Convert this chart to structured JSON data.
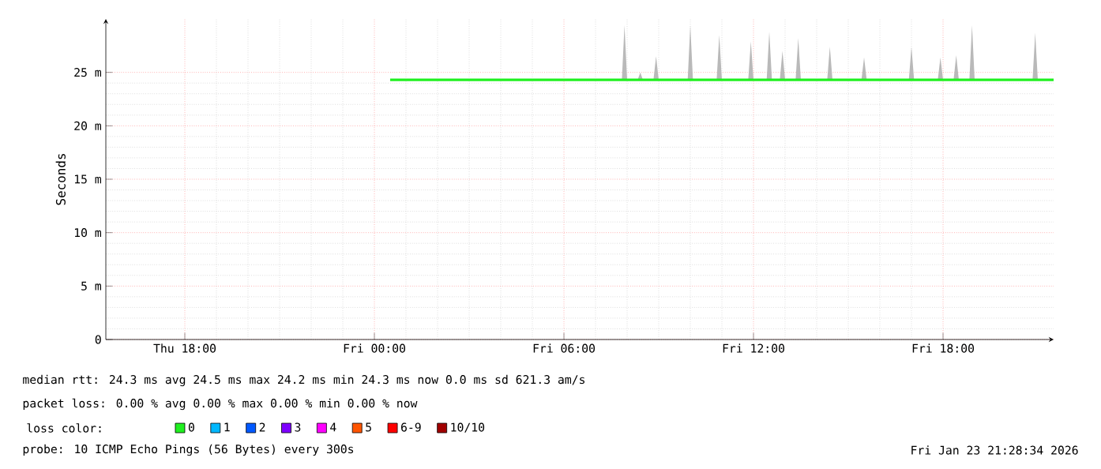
{
  "chart_data": {
    "type": "line",
    "ylabel": "Seconds",
    "xlim": [
      "2026-01-22T15:30",
      "2026-01-23T21:30"
    ],
    "xticks": [
      {
        "value": "2026-01-22T18:00",
        "label": "Thu 18:00"
      },
      {
        "value": "2026-01-23T00:00",
        "label": "Fri 00:00"
      },
      {
        "value": "2026-01-23T06:00",
        "label": "Fri 06:00"
      },
      {
        "value": "2026-01-23T12:00",
        "label": "Fri 12:00"
      },
      {
        "value": "2026-01-23T18:00",
        "label": "Fri 18:00"
      }
    ],
    "ylim": [
      0,
      30
    ],
    "yticks": [
      0,
      {
        "value": 5,
        "label": "5 m"
      },
      {
        "value": 10,
        "label": "10 m"
      },
      {
        "value": 15,
        "label": "15 m"
      },
      {
        "value": 20,
        "label": "20 m"
      },
      {
        "value": 25,
        "label": "25 m"
      }
    ],
    "grid": true,
    "legend": "bottom",
    "legend_title": "loss color:",
    "series": [
      {
        "name": "0",
        "color": "#20f020",
        "x": [
          "2026-01-23T00:30",
          "2026-01-23T07:50",
          "2026-01-23T07:55",
          "2026-01-23T08:00",
          "2026-01-23T08:20",
          "2026-01-23T08:25",
          "2026-01-23T08:30",
          "2026-01-23T08:50",
          "2026-01-23T08:55",
          "2026-01-23T09:00",
          "2026-01-23T09:55",
          "2026-01-23T10:00",
          "2026-01-23T10:05",
          "2026-01-23T10:50",
          "2026-01-23T10:55",
          "2026-01-23T11:00",
          "2026-01-23T11:50",
          "2026-01-23T11:55",
          "2026-01-23T12:00",
          "2026-01-23T12:25",
          "2026-01-23T12:30",
          "2026-01-23T12:35",
          "2026-01-23T12:50",
          "2026-01-23T12:55",
          "2026-01-23T13:00",
          "2026-01-23T13:20",
          "2026-01-23T13:25",
          "2026-01-23T13:30",
          "2026-01-23T14:20",
          "2026-01-23T14:25",
          "2026-01-23T14:30",
          "2026-01-23T15:25",
          "2026-01-23T15:30",
          "2026-01-23T15:35",
          "2026-01-23T16:55",
          "2026-01-23T17:00",
          "2026-01-23T17:05",
          "2026-01-23T17:50",
          "2026-01-23T17:55",
          "2026-01-23T18:00",
          "2026-01-23T18:20",
          "2026-01-23T18:25",
          "2026-01-23T18:30",
          "2026-01-23T18:50",
          "2026-01-23T18:55",
          "2026-01-23T19:00",
          "2026-01-23T20:50",
          "2026-01-23T20:55",
          "2026-01-23T21:00",
          "2026-01-23T21:30"
        ],
        "values": [
          24.3,
          24.3,
          24.3,
          24.3,
          24.3,
          24.3,
          24.3,
          24.3,
          24.3,
          24.3,
          24.3,
          24.3,
          24.3,
          24.3,
          24.3,
          24.3,
          24.3,
          24.3,
          24.3,
          24.3,
          24.3,
          24.3,
          24.3,
          24.3,
          24.3,
          24.3,
          24.3,
          24.3,
          24.3,
          24.3,
          24.3,
          24.3,
          24.3,
          24.3,
          24.3,
          24.3,
          24.3,
          24.3,
          24.3,
          24.3,
          24.3,
          24.3,
          24.3,
          24.3,
          24.3,
          24.3,
          24.3,
          24.3,
          24.3,
          24.3
        ],
        "lower": [
          24.3,
          24.3,
          24.3,
          24.3,
          24.3,
          24.3,
          24.3,
          24.3,
          24.3,
          24.3,
          24.3,
          24.3,
          24.3,
          24.3,
          24.3,
          24.3,
          24.3,
          24.3,
          24.3,
          24.3,
          24.3,
          24.3,
          24.3,
          24.3,
          24.3,
          24.3,
          24.3,
          24.3,
          24.3,
          24.3,
          24.3,
          24.3,
          24.3,
          24.3,
          24.3,
          24.3,
          24.3,
          24.3,
          24.3,
          24.3,
          24.3,
          24.3,
          24.3,
          24.3,
          24.3,
          24.3,
          24.3,
          24.3,
          24.3,
          24.3
        ],
        "upper": [
          24.3,
          24.3,
          29.4,
          24.3,
          24.3,
          25.0,
          24.3,
          24.3,
          26.5,
          24.3,
          24.3,
          29.4,
          24.3,
          24.3,
          28.5,
          24.3,
          24.3,
          27.9,
          24.3,
          24.3,
          28.8,
          24.3,
          24.3,
          27.0,
          24.3,
          24.3,
          28.2,
          24.3,
          24.3,
          27.4,
          24.3,
          24.3,
          26.4,
          24.3,
          24.3,
          27.4,
          24.3,
          24.3,
          26.4,
          24.3,
          24.3,
          26.6,
          24.3,
          24.3,
          29.4,
          24.3,
          24.3,
          28.7,
          24.3,
          24.3
        ]
      },
      {
        "name": "1",
        "color": "#00b8ff"
      },
      {
        "name": "2",
        "color": "#0059ff"
      },
      {
        "name": "3",
        "color": "#7e00ff"
      },
      {
        "name": "4",
        "color": "#ff00ff"
      },
      {
        "name": "5",
        "color": "#ff5500"
      },
      {
        "name": "6-9",
        "color": "#ff0000"
      },
      {
        "name": "10/10",
        "color": "#a10000"
      }
    ],
    "annotations": [
      "median rtt:  24.3 ms avg  24.5 ms max  24.2 ms min  24.3 ms now  0.0 ms sd  621.3   am/s",
      "packet loss: 0.00 % avg  0.00 % max  0.00 % min  0.00 % now",
      "probe:       10 ICMP Echo Pings (56 Bytes) every 300s",
      "Fri Jan 23 21:28:34 2026"
    ]
  }
}
